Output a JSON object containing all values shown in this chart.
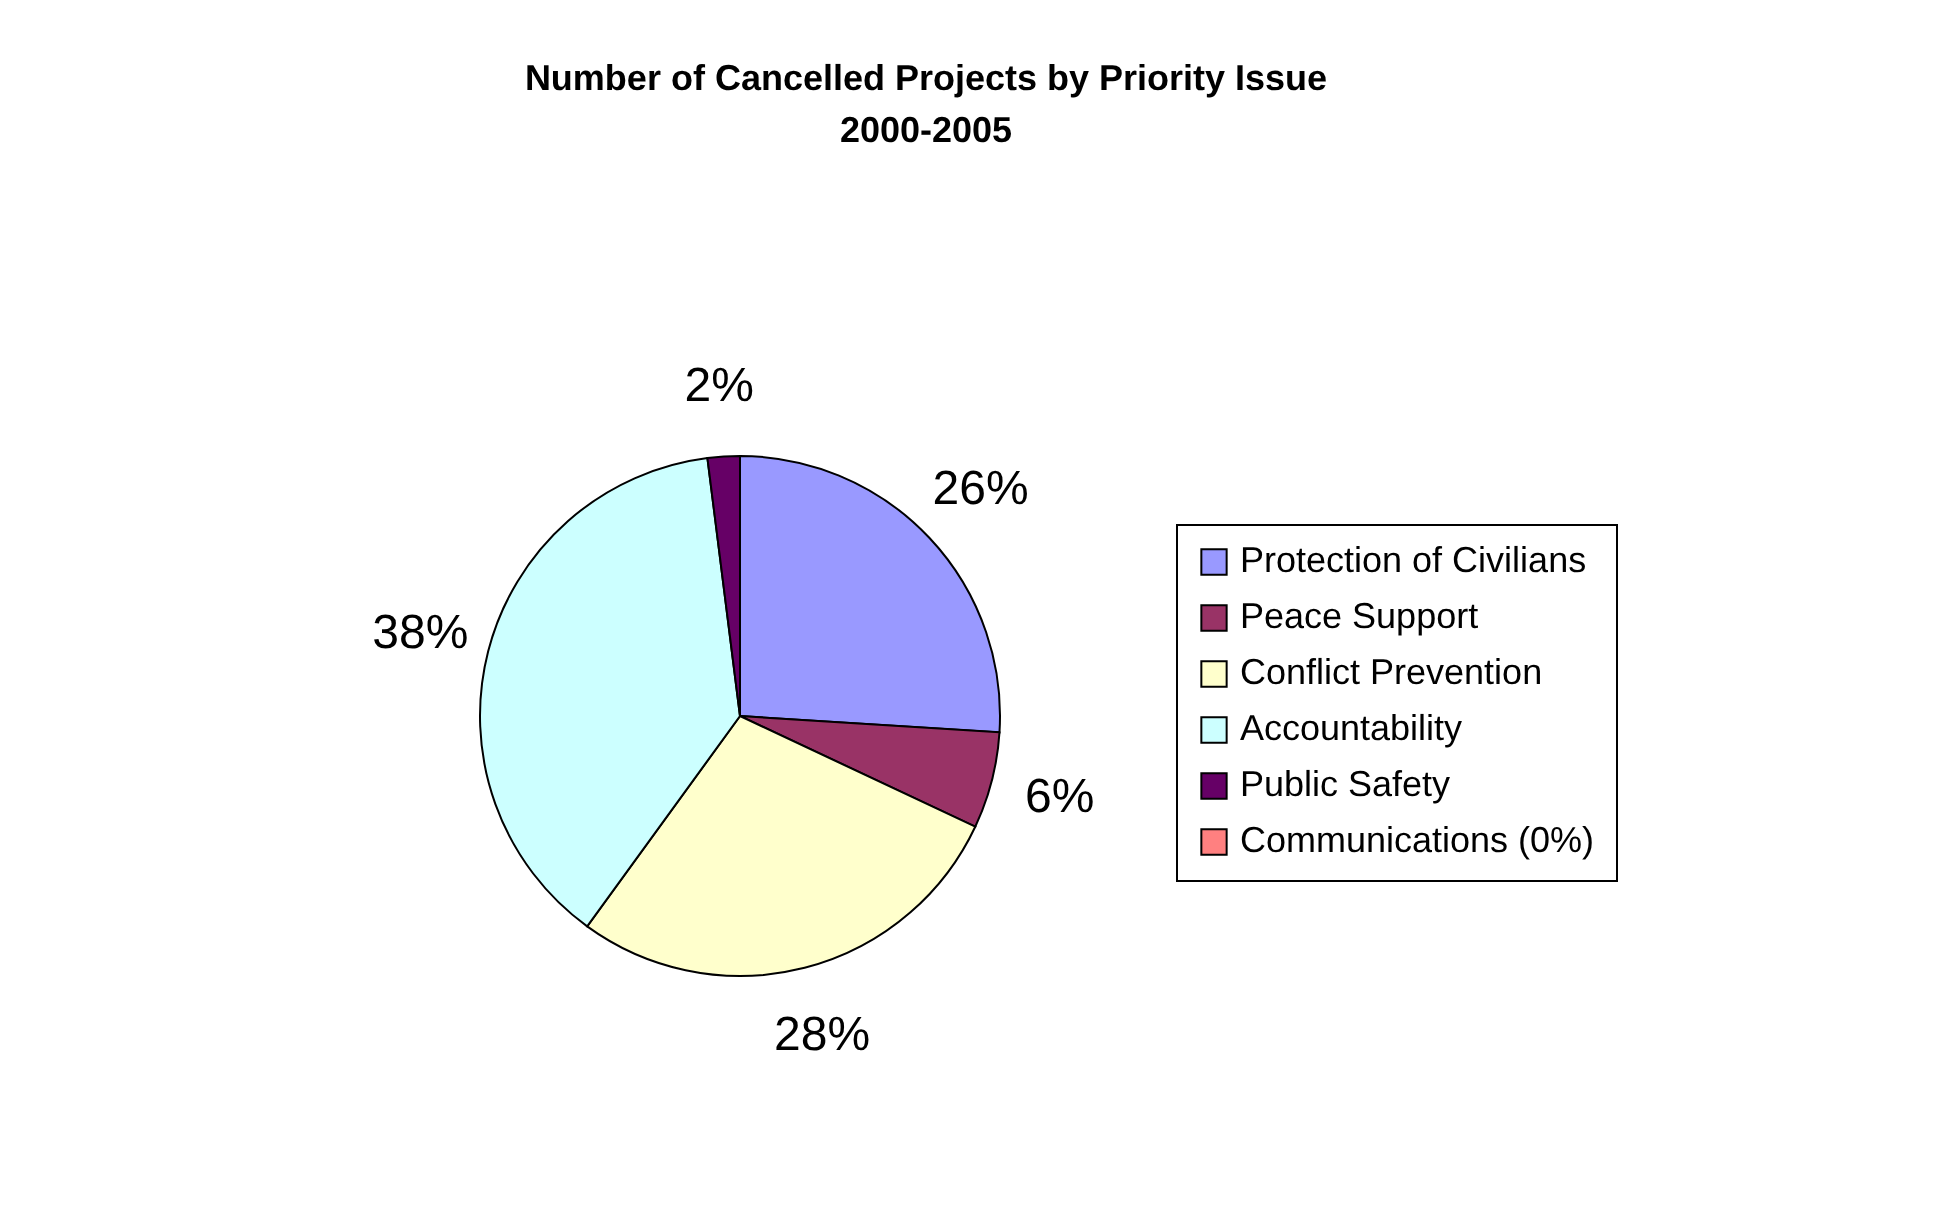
{
  "chart_data": {
    "type": "pie",
    "title": "Number of Cancelled Projects by Priority Issue",
    "subtitle": "2000-2005",
    "categories": [
      "Protection of Civilians",
      "Peace Support",
      "Conflict Prevention",
      "Accountability",
      "Public Safety",
      "Communications (0%)"
    ],
    "values": [
      26,
      6,
      28,
      38,
      2,
      0
    ],
    "colors": [
      "#9999ff",
      "#993366",
      "#ffffcc",
      "#ccffff",
      "#660066",
      "#ff8080"
    ],
    "value_labels": [
      "26%",
      "6%",
      "28%",
      "38%",
      "2%",
      null
    ],
    "legend": "right"
  }
}
